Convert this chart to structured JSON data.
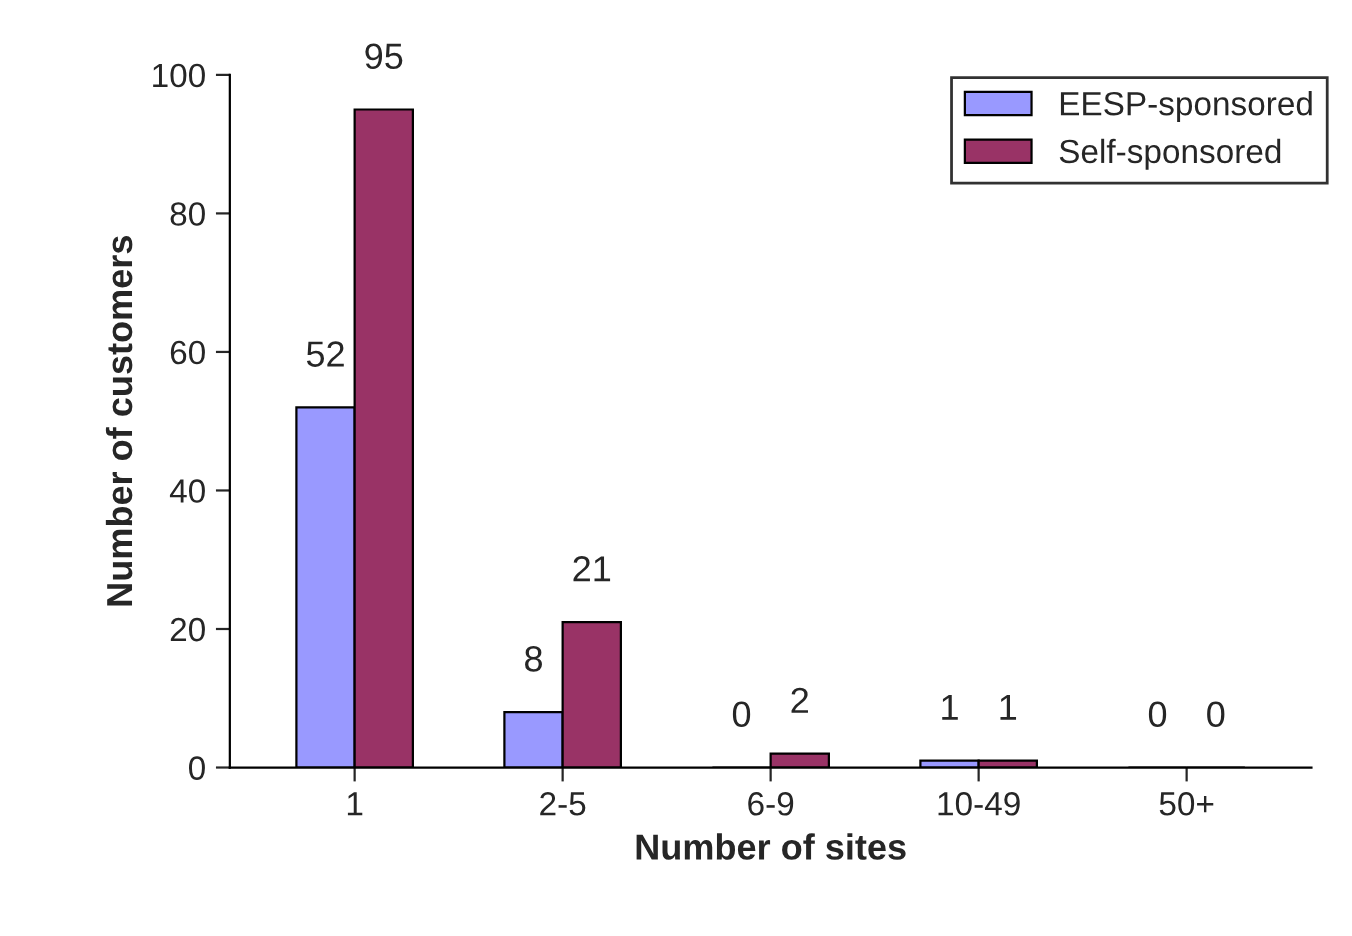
{
  "chart_data": {
    "type": "bar",
    "xlabel": "Number of sites",
    "ylabel": "Number of customers",
    "categories": [
      "1",
      "2-5",
      "6-9",
      "10-49",
      "50+"
    ],
    "series": [
      {
        "name": "EESP-sponsored",
        "color": "#9999ff",
        "values": [
          52,
          8,
          0,
          1,
          0
        ]
      },
      {
        "name": "Self-sponsored",
        "color": "#993366",
        "values": [
          95,
          21,
          2,
          1,
          0
        ]
      }
    ],
    "ylim": [
      0,
      100
    ],
    "yticks": [
      0,
      20,
      40,
      60,
      80,
      100
    ],
    "grid": false,
    "legend": "top right",
    "data_labels": true
  }
}
